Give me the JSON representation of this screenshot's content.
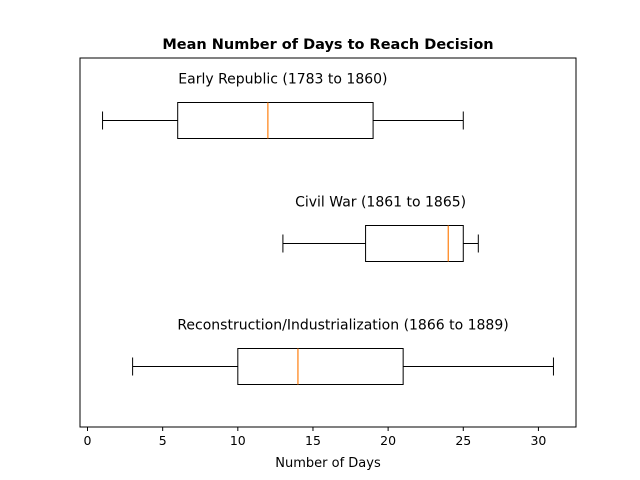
{
  "chart_data": {
    "type": "boxplot",
    "orientation": "horizontal",
    "title": "Mean Number of Days to Reach Decision",
    "xlabel": "Number of Days",
    "ylabel": "",
    "xlim": [
      -0.5,
      32.5
    ],
    "xticks": [
      0,
      5,
      10,
      15,
      20,
      25,
      30
    ],
    "xtick_labels": [
      "0",
      "5",
      "10",
      "15",
      "20",
      "25",
      "30"
    ],
    "grid": false,
    "colors": {
      "box": "#000000",
      "median": "#ff7f0e"
    },
    "series": [
      {
        "name": "Early Republic (1783 to 1860)",
        "whisker_low": 1,
        "q1": 6,
        "median": 12,
        "q3": 19,
        "whisker_high": 25
      },
      {
        "name": "Civil War (1861 to 1865)",
        "whisker_low": 13,
        "q1": 18.5,
        "median": 24,
        "q3": 25,
        "whisker_high": 26
      },
      {
        "name": "Reconstruction/Industrialization (1866 to 1889)",
        "whisker_low": 3,
        "q1": 10,
        "median": 14,
        "q3": 21,
        "whisker_high": 31
      }
    ]
  }
}
